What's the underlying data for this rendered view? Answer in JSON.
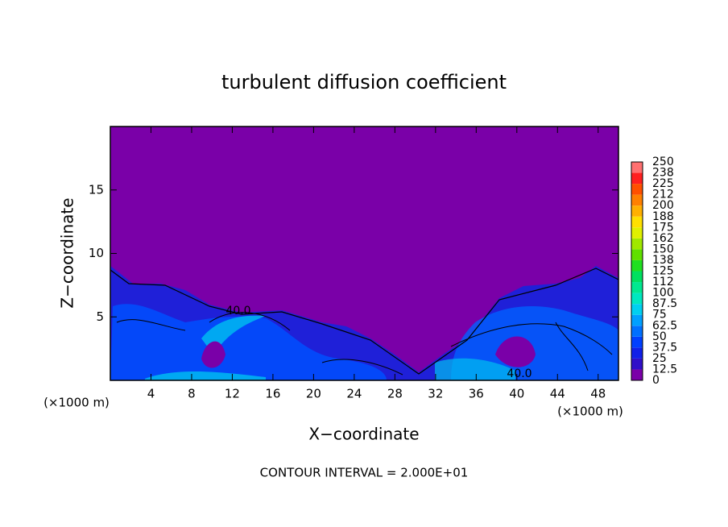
{
  "chart_data": {
    "type": "contour",
    "title": "turbulent diffusion coefficient",
    "xlabel": "X−coordinate",
    "ylabel": "Z−coordinate",
    "x_unit_labels": [
      "(×1000 m)",
      "(×1000 m)"
    ],
    "xlim": [
      0,
      50
    ],
    "xticks": [
      4,
      8,
      12,
      16,
      20,
      24,
      28,
      32,
      36,
      40,
      44,
      48
    ],
    "ylim": [
      0,
      20
    ],
    "yticks": [
      5,
      10,
      15
    ],
    "colorbar": {
      "levels": [
        0,
        12.5,
        25,
        37.5,
        50,
        62.5,
        75,
        87.5,
        100,
        112,
        125,
        138,
        150,
        162,
        175,
        188,
        200,
        212,
        225,
        238,
        250
      ],
      "colors": [
        "#7a00a8",
        "#3010c8",
        "#1020e8",
        "#0040ff",
        "#0070ff",
        "#00a0ff",
        "#00d0f0",
        "#00e8c0",
        "#00e890",
        "#00e060",
        "#20e020",
        "#60e000",
        "#a0e800",
        "#e0f000",
        "#ffe000",
        "#ffb000",
        "#ff8000",
        "#ff5000",
        "#ff2020",
        "#ff7070"
      ]
    },
    "annotations": [
      "40.0",
      "40.0",
      "CONTOUR INTERVAL = 2.000E+01"
    ]
  }
}
